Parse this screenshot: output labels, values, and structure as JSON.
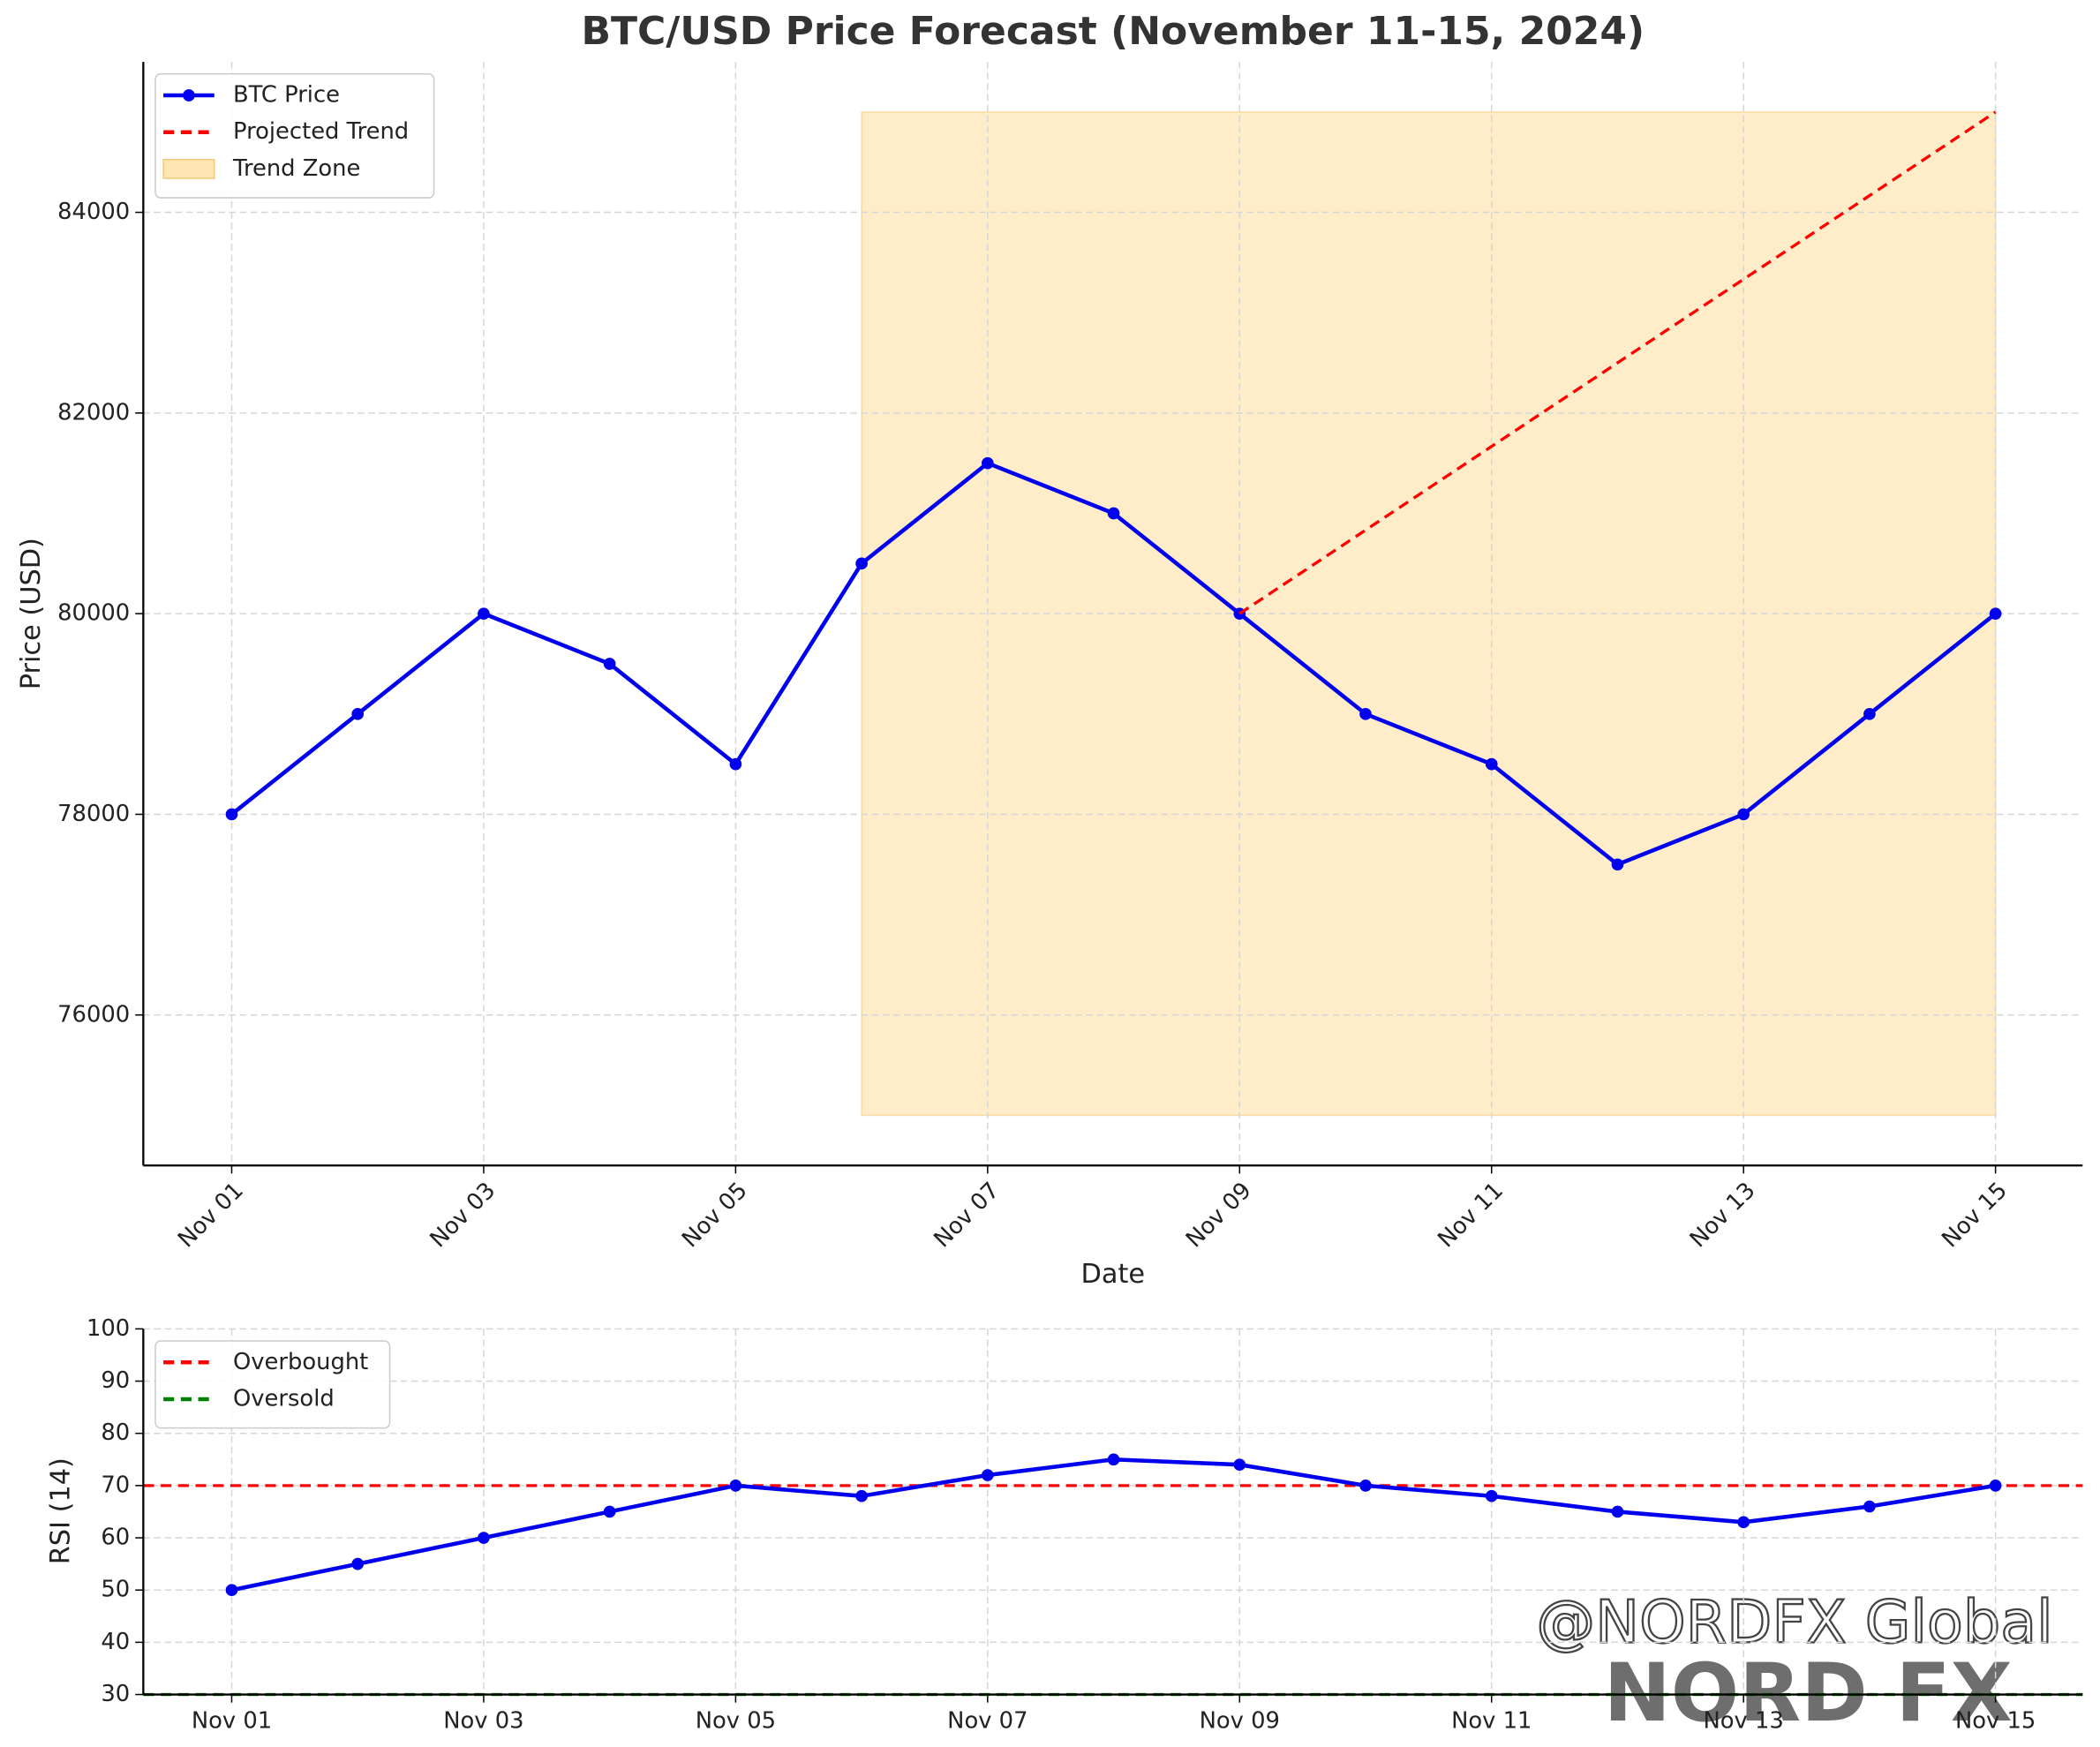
{
  "chart_data": [
    {
      "type": "line",
      "title": "BTC/USD Price Forecast (November 11-15, 2024)",
      "x_label": "Date",
      "y_label": "Price (USD)",
      "x": [
        "Nov 01",
        "Nov 02",
        "Nov 03",
        "Nov 04",
        "Nov 05",
        "Nov 06",
        "Nov 07",
        "Nov 08",
        "Nov 09",
        "Nov 10",
        "Nov 11",
        "Nov 12",
        "Nov 13",
        "Nov 14",
        "Nov 15"
      ],
      "xticks": [
        "Nov 01",
        "Nov 03",
        "Nov 05",
        "Nov 07",
        "Nov 09",
        "Nov 11",
        "Nov 13",
        "Nov 15"
      ],
      "ylim": [
        74500,
        85500
      ],
      "yticks": [
        76000,
        78000,
        80000,
        82000,
        84000
      ],
      "grid": true,
      "legend": "upper left",
      "series": [
        {
          "name": "BTC Price",
          "color": "#0000ee",
          "marker": true,
          "values": [
            78000,
            79000,
            80000,
            79500,
            78500,
            80500,
            81500,
            81000,
            80000,
            79000,
            78500,
            77500,
            78000,
            79000,
            80000
          ]
        },
        {
          "name": "Projected Trend",
          "color": "#ff0000",
          "dashed": true,
          "values": [
            null,
            null,
            null,
            null,
            null,
            null,
            null,
            null,
            80000,
            80833,
            81667,
            82500,
            83333,
            84167,
            85000
          ]
        }
      ],
      "zone": {
        "name": "Trend Zone",
        "color": "#ffe6b3",
        "x": [
          "Nov 06",
          "Nov 15"
        ],
        "y": [
          75000,
          85000
        ]
      }
    },
    {
      "type": "line",
      "y_label": "RSI (14)",
      "x": [
        "Nov 01",
        "Nov 02",
        "Nov 03",
        "Nov 04",
        "Nov 05",
        "Nov 06",
        "Nov 07",
        "Nov 08",
        "Nov 09",
        "Nov 10",
        "Nov 11",
        "Nov 12",
        "Nov 13",
        "Nov 14",
        "Nov 15"
      ],
      "xticks": [
        "Nov 01",
        "Nov 03",
        "Nov 05",
        "Nov 07",
        "Nov 09",
        "Nov 11",
        "Nov 13",
        "Nov 15"
      ],
      "ylim": [
        30,
        100
      ],
      "yticks": [
        30,
        40,
        50,
        60,
        70,
        80,
        90,
        100
      ],
      "grid": true,
      "legend": "upper left",
      "series": [
        {
          "color": "#0000ee",
          "marker": true,
          "values": [
            50,
            55,
            60,
            65,
            70,
            68,
            72,
            75,
            74,
            70,
            68,
            65,
            63,
            66,
            70
          ]
        }
      ],
      "hlines": [
        {
          "name": "Overbought",
          "value": 70,
          "color": "#ff0000"
        },
        {
          "name": "Oversold",
          "value": 30,
          "color": "#008000"
        }
      ]
    }
  ],
  "watermark": [
    "@NORDFX Global",
    "NORD FX"
  ]
}
